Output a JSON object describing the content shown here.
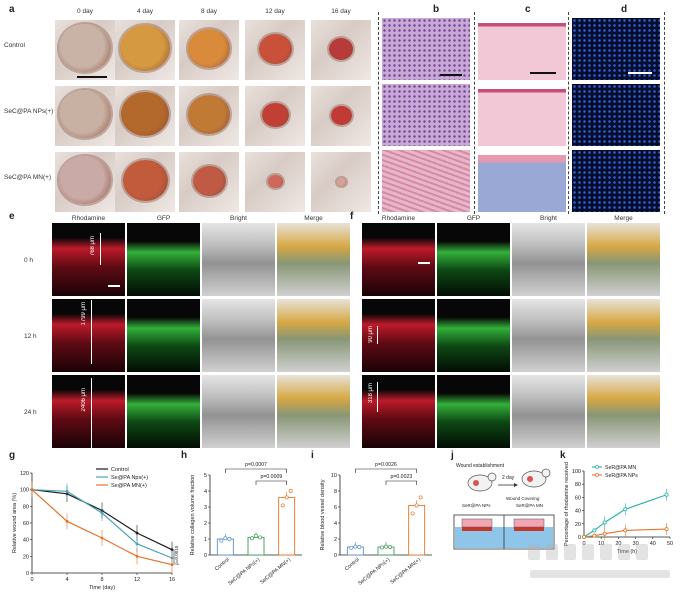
{
  "panels": {
    "a": "a",
    "b": "b",
    "c": "c",
    "d": "d",
    "e": "e",
    "f": "f",
    "g": "g",
    "h": "h",
    "i": "i",
    "j": "j",
    "k": "k"
  },
  "panel_a": {
    "days": [
      "0 day",
      "4 day",
      "8 day",
      "12 day",
      "16 day"
    ],
    "groups": [
      "Control",
      "SeC@PA NPs(+)",
      "SeC@PA MN(+)"
    ]
  },
  "panel_e": {
    "channels": [
      "Rhodamine",
      "GFP",
      "Bright",
      "Merge"
    ],
    "times": [
      "0 h",
      "12 h",
      "24 h"
    ],
    "depths": [
      "768 μm",
      "1799 μm",
      "2406 μm"
    ]
  },
  "panel_f": {
    "channels": [
      "Rhodamine",
      "GFP",
      "Bright",
      "Merge"
    ],
    "depths": [
      "90 μm",
      "318 μm"
    ]
  },
  "panel_j": {
    "wound_establishment": "Wound establishment",
    "two_day": "2 day",
    "wound_covering": "Wound Covering",
    "ser_nps": "SeR@PA NPs",
    "ser_mn": "SeR@PA MN"
  },
  "chart_data": [
    {
      "panel": "g",
      "type": "line",
      "xlabel": "Time (day)",
      "ylabel": "Relative wound area (%)",
      "xlim": [
        0,
        16
      ],
      "ylim": [
        0,
        120
      ],
      "xticks": [
        "0",
        "4",
        "8",
        "12",
        "16"
      ],
      "yticks": [
        "0",
        "20",
        "40",
        "60",
        "80",
        "100",
        "120"
      ],
      "x": [
        0,
        4,
        8,
        12,
        16
      ],
      "legend": [
        "Control",
        "Se@PA Nps(+)",
        "Se@PA MN(+)"
      ],
      "series": [
        {
          "name": "Control",
          "values": [
            100,
            95,
            75,
            48,
            28
          ],
          "color": "#1a1a1a"
        },
        {
          "name": "Se@PA Nps(+)",
          "values": [
            100,
            98,
            72,
            35,
            18
          ],
          "color": "#4aa3b8"
        },
        {
          "name": "Se@PA MN(+)",
          "values": [
            100,
            62,
            42,
            20,
            10
          ],
          "color": "#e2752b"
        }
      ],
      "annotations": [
        "p=0.0010"
      ]
    },
    {
      "panel": "h",
      "type": "bar",
      "ylabel": "Relative collagen volume fraction",
      "categories": [
        "Control",
        "SeC@PA NPs(+)",
        "SeC@PA MN(+)"
      ],
      "values": [
        1.0,
        1.1,
        3.6
      ],
      "ylim": [
        0,
        5
      ],
      "yticks": [
        "0",
        "1",
        "2",
        "3",
        "4",
        "5"
      ],
      "colors": [
        "#5b8fc7",
        "#3f9c5d",
        "#e2752b"
      ],
      "points": [
        [
          0.9,
          1.05,
          1.0
        ],
        [
          1.05,
          1.2,
          1.1
        ],
        [
          3.1,
          3.6,
          4.0
        ]
      ],
      "annotations": [
        "p=0.0007",
        "p=0.0009"
      ]
    },
    {
      "panel": "i",
      "type": "bar",
      "ylabel": "Relative blood vessel density",
      "categories": [
        "Control",
        "SeC@PA NPs(+)",
        "SeC@PA MN(+)"
      ],
      "values": [
        1.0,
        1.0,
        6.2
      ],
      "ylim": [
        0,
        10
      ],
      "yticks": [
        "0",
        "2",
        "4",
        "6",
        "8",
        "10"
      ],
      "colors": [
        "#5b8fc7",
        "#3f9c5d",
        "#e2752b"
      ],
      "points": [
        [
          0.9,
          1.05,
          1.0
        ],
        [
          0.95,
          1.05,
          1.0
        ],
        [
          5.2,
          6.2,
          7.2
        ]
      ],
      "annotations": [
        "p=0.0026",
        "p=0.0023"
      ]
    },
    {
      "panel": "k",
      "type": "line",
      "xlabel": "Time (h)",
      "ylabel": "Percentage of rhodamine received",
      "xlim": [
        0,
        50
      ],
      "ylim": [
        0,
        100
      ],
      "xticks": [
        "0",
        "10",
        "20",
        "30",
        "40",
        "50"
      ],
      "yticks": [
        "0",
        "20",
        "40",
        "60",
        "80",
        "100"
      ],
      "legend": [
        "SeR@PA MN",
        "SeR@PA NPs"
      ],
      "series": [
        {
          "name": "SeR@PA MN",
          "x": [
            0,
            6,
            12,
            24,
            48
          ],
          "values": [
            0,
            10,
            22,
            42,
            64
          ],
          "color": "#27b0a8"
        },
        {
          "name": "SeR@PA NPs",
          "x": [
            0,
            6,
            12,
            24,
            48
          ],
          "values": [
            0,
            2,
            5,
            10,
            12
          ],
          "color": "#e2752b"
        }
      ]
    }
  ]
}
